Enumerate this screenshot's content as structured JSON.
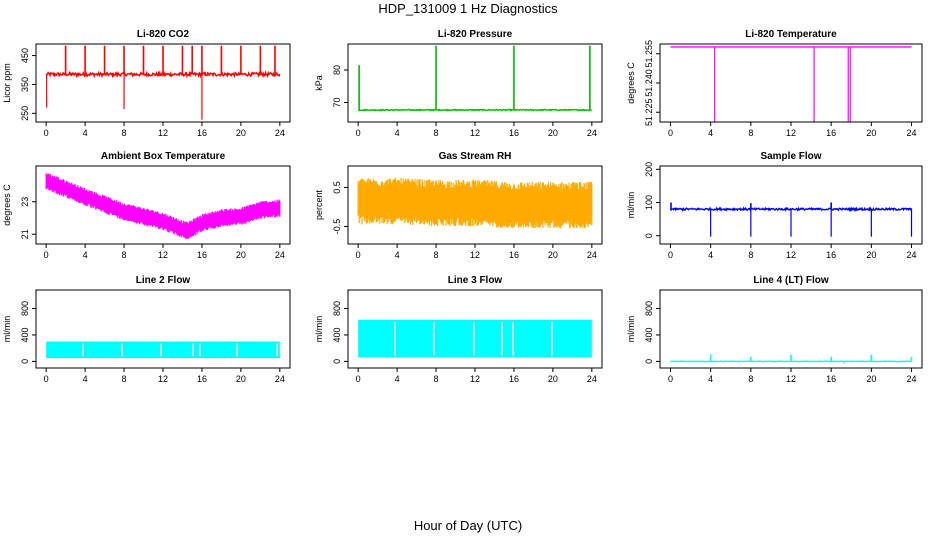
{
  "figure": {
    "title": "HDP_131009  1 Hz Diagnostics",
    "xlabel": "Hour of Day (UTC)"
  },
  "chart_data": [
    {
      "type": "line",
      "title": "Li-820 CO2",
      "ylabel": "Licor ppm",
      "color": "#ff0000",
      "xlim": [
        0,
        24
      ],
      "ylim": [
        220,
        490
      ],
      "x_ticks": [
        0,
        4,
        8,
        12,
        16,
        20,
        24
      ],
      "y_ticks": [
        250,
        350,
        450
      ],
      "base": 385,
      "noise": 6,
      "spikes": [
        {
          "x": 2.0,
          "y": 484
        },
        {
          "x": 4.0,
          "y": 484
        },
        {
          "x": 6.0,
          "y": 484
        },
        {
          "x": 8.0,
          "y": 484
        },
        {
          "x": 10.0,
          "y": 484
        },
        {
          "x": 12.0,
          "y": 484
        },
        {
          "x": 14.0,
          "y": 484
        },
        {
          "x": 15.0,
          "y": 484
        },
        {
          "x": 16.0,
          "y": 484
        },
        {
          "x": 18.0,
          "y": 484
        },
        {
          "x": 20.0,
          "y": 484
        },
        {
          "x": 22.0,
          "y": 484
        },
        {
          "x": 23.5,
          "y": 484
        }
      ],
      "dips": [
        {
          "x": 0.05,
          "y": 270
        },
        {
          "x": 8.0,
          "y": 265
        },
        {
          "x": 16.0,
          "y": 228
        }
      ]
    },
    {
      "type": "line",
      "title": "Li-820 Pressure",
      "ylabel": "kPa",
      "color": "#00bb00",
      "xlim": [
        0,
        24
      ],
      "ylim": [
        64,
        88
      ],
      "x_ticks": [
        0,
        4,
        8,
        12,
        16,
        20,
        24
      ],
      "y_ticks": [
        70,
        80
      ],
      "base": 67.7,
      "noise": 0.15,
      "spikes": [
        {
          "x": 0.1,
          "y": 81.5
        },
        {
          "x": 8.0,
          "y": 87.5
        },
        {
          "x": 16.0,
          "y": 87.5
        },
        {
          "x": 23.8,
          "y": 87.5
        }
      ],
      "dips": []
    },
    {
      "type": "line",
      "title": "Li-820 Temperature",
      "ylabel": "degrees C",
      "color": "#ff00ff",
      "xlim": [
        0,
        24
      ],
      "ylim": [
        51.22,
        51.26
      ],
      "x_ticks": [
        0,
        4,
        8,
        12,
        16,
        20,
        24
      ],
      "y_ticks": [
        51.225,
        51.24,
        51.255
      ],
      "y_tick_labels": [
        "51.225",
        "51.240",
        "51.255"
      ],
      "base": 51.2585,
      "noise": 0,
      "spikes": [],
      "dips": [
        {
          "x": 4.4,
          "y": 51.22
        },
        {
          "x": 14.3,
          "y": 51.22
        },
        {
          "x": 17.7,
          "y": 51.22
        },
        {
          "x": 17.9,
          "y": 51.22
        }
      ]
    },
    {
      "type": "area",
      "title": "Ambient Box Temperature",
      "ylabel": "degrees C",
      "color": "#ff00ff",
      "xlim": [
        0,
        24
      ],
      "ylim": [
        20.4,
        25.2
      ],
      "x_ticks": [
        0,
        4,
        8,
        12,
        16,
        20,
        24
      ],
      "y_ticks": [
        21,
        23
      ],
      "trend_x": [
        0,
        4,
        8,
        12,
        14.5,
        16,
        18,
        20,
        22,
        24
      ],
      "trend_y": [
        24.3,
        23.3,
        22.4,
        21.8,
        21.2,
        21.7,
        22.0,
        22.1,
        22.5,
        22.6
      ],
      "band": 0.55
    },
    {
      "type": "area",
      "title": "Gas Stream RH",
      "ylabel": "percent",
      "color": "#ffaa00",
      "xlim": [
        0,
        24
      ],
      "ylim": [
        -0.95,
        1.05
      ],
      "x_ticks": [
        0,
        4,
        8,
        12,
        16,
        20,
        24
      ],
      "y_ticks": [
        -0.5,
        0.5
      ],
      "trend_x": [
        0,
        4,
        8,
        12,
        16,
        20,
        24
      ],
      "trend_y": [
        0.15,
        0.15,
        0.1,
        0.1,
        0.05,
        0.05,
        0.05
      ],
      "band": 0.6
    },
    {
      "type": "line",
      "title": "Sample Flow",
      "ylabel": "ml/min",
      "color": "#0000ff",
      "xlim": [
        0,
        24
      ],
      "ylim": [
        -25,
        210
      ],
      "x_ticks": [
        0,
        4,
        8,
        12,
        16,
        20,
        24
      ],
      "y_ticks": [
        0,
        100,
        200
      ],
      "base": 80,
      "noise": 3,
      "spikes": [
        {
          "x": 0.05,
          "y": 100
        },
        {
          "x": 8.0,
          "y": 98
        },
        {
          "x": 16.0,
          "y": 100
        }
      ],
      "dips": [
        {
          "x": 4.0,
          "y": -3
        },
        {
          "x": 8.0,
          "y": -3
        },
        {
          "x": 12.0,
          "y": -3
        },
        {
          "x": 16.0,
          "y": -3
        },
        {
          "x": 20.0,
          "y": -3
        },
        {
          "x": 24.0,
          "y": -3
        }
      ]
    },
    {
      "type": "band",
      "title": "Line 2 Flow",
      "ylabel": "ml/min",
      "color": "#00ffff",
      "xlim": [
        0,
        24
      ],
      "ylim": [
        -100,
        1080
      ],
      "x_ticks": [
        0,
        4,
        8,
        12,
        16,
        20,
        24
      ],
      "y_ticks": [
        0,
        400,
        800
      ],
      "low": 50,
      "high": 300,
      "gaps": [
        3.8,
        7.8,
        11.8,
        15.1,
        15.8,
        19.6,
        23.7
      ]
    },
    {
      "type": "band",
      "title": "Line 3 Flow",
      "ylabel": "ml/min",
      "color": "#00ffff",
      "xlim": [
        0,
        24
      ],
      "ylim": [
        -100,
        1080
      ],
      "x_ticks": [
        0,
        4,
        8,
        12,
        16,
        20,
        24
      ],
      "y_ticks": [
        0,
        400,
        800
      ],
      "low": 60,
      "high": 630,
      "gaps": [
        3.8,
        7.8,
        11.9,
        14.8,
        15.9,
        19.9
      ]
    },
    {
      "type": "line",
      "title": "Line 4 (LT) Flow",
      "ylabel": "ml/min",
      "color": "#00ffff",
      "xlim": [
        0,
        24
      ],
      "ylim": [
        -100,
        1080
      ],
      "x_ticks": [
        0,
        4,
        8,
        12,
        16,
        20,
        24
      ],
      "y_ticks": [
        0,
        400,
        800
      ],
      "base": 0,
      "noise": 4,
      "spikes": [
        {
          "x": 4.0,
          "y": 110
        },
        {
          "x": 8.0,
          "y": 70
        },
        {
          "x": 12.0,
          "y": 100
        },
        {
          "x": 16.0,
          "y": 70
        },
        {
          "x": 20.0,
          "y": 100
        },
        {
          "x": 24.0,
          "y": 70
        }
      ],
      "dips": [
        {
          "x": 17.3,
          "y": -35
        }
      ]
    }
  ]
}
